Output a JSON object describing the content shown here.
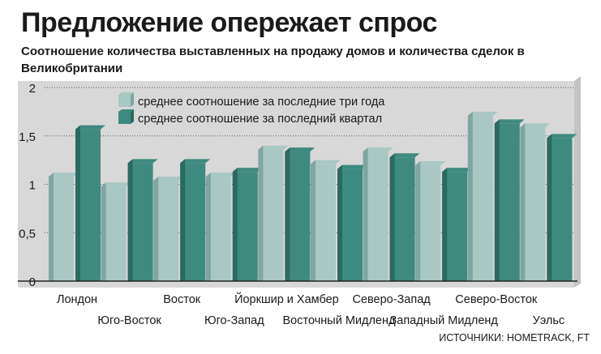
{
  "title": "Предложение опережает спрос",
  "subtitle": "Соотношение количества выставленных на продажу домов и количества сделок в Великобритании",
  "source": "ИСТОЧНИКИ: HOMETRACK, FT",
  "colors": {
    "light": "#a9c7c3",
    "light_side": "#7fa6a1",
    "dark": "#3f8a7f",
    "dark_side": "#2a6a60",
    "grid": "#555555",
    "background": "#d8d8d8"
  },
  "chart_data": {
    "type": "bar",
    "ylim": [
      0,
      2
    ],
    "yticks": [
      "0",
      "0,5",
      "1",
      "1,5",
      "2"
    ],
    "ytick_values": [
      0,
      0.5,
      1,
      1.5,
      2
    ],
    "categories": [
      "Лондон",
      "Юго-Восток",
      "Восток",
      "Юго-Запад",
      "Йоркшир и Хамбер",
      "Восточный Мидленд",
      "Северо-Запад",
      "Западный Мидленд",
      "Северо-Восток",
      "Уэльс"
    ],
    "series": [
      {
        "name": "среднее соотношение за последние три года",
        "values": [
          1.12,
          1.02,
          1.08,
          1.12,
          1.4,
          1.25,
          1.38,
          1.24,
          1.75,
          1.63
        ]
      },
      {
        "name": "среднее соотношение за последний квартал",
        "values": [
          1.61,
          1.26,
          1.26,
          1.17,
          1.38,
          1.2,
          1.32,
          1.17,
          1.67,
          1.52
        ]
      }
    ]
  }
}
